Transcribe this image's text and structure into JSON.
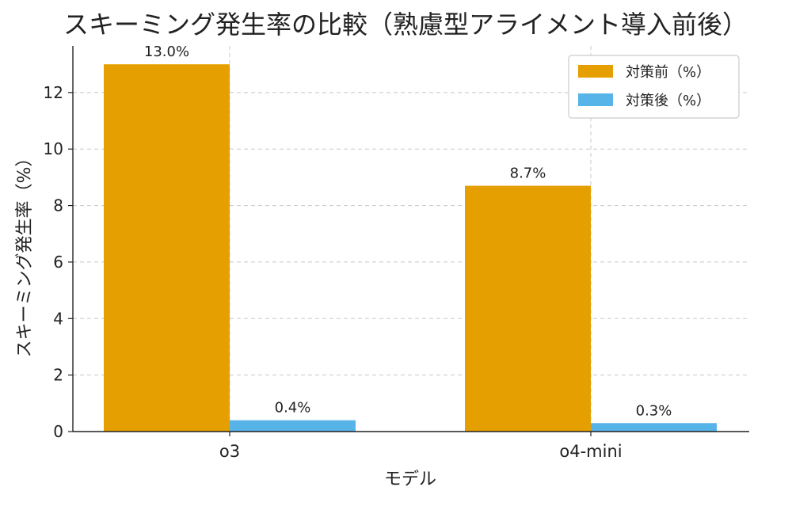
{
  "chart_data": {
    "type": "bar",
    "title": "スキーミング発生率の比較（熟慮型アライメント導入前後）",
    "xlabel": "モデル",
    "ylabel": "スキーミング発生率（%）",
    "categories": [
      "o3",
      "o4-mini"
    ],
    "series": [
      {
        "name": "対策前（%）",
        "values": [
          13.0,
          8.7
        ],
        "labels": [
          "13.0%",
          "8.7%"
        ],
        "color": "#E69F00"
      },
      {
        "name": "対策後（%）",
        "values": [
          0.4,
          0.3
        ],
        "labels": [
          "0.4%",
          "0.3%"
        ],
        "color": "#56B4E9"
      }
    ],
    "ylim": [
      0,
      13.65
    ],
    "yticks": [
      0,
      2,
      4,
      6,
      8,
      10,
      12
    ],
    "grid": true,
    "legend": "top-right"
  }
}
